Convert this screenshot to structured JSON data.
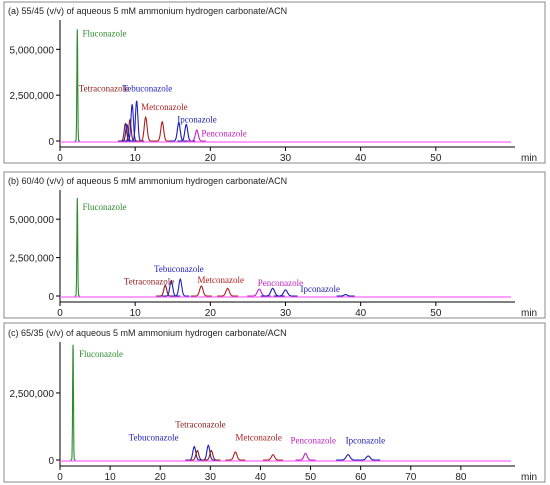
{
  "colors": {
    "fluconazole": "#2e8b2e",
    "tetraconazole": "#8b1a1a",
    "tebuconazole": "#2020c0",
    "metconazole": "#b02020",
    "ipconazole": "#1a1ab0",
    "penconazole": "#c020c0",
    "baseline": "#ff66ff"
  },
  "chart_data": [
    {
      "type": "line",
      "title": "(a)  55/45 (v/v)  of aqueous 5 mM ammonium hydrogen carbonate/ACN",
      "xlabel": "min",
      "xlim": [
        0,
        60
      ],
      "ylim": [
        -400000,
        6600000
      ],
      "x_ticks": [
        0,
        10,
        20,
        30,
        40,
        50
      ],
      "y_ticks": [
        0,
        2500000,
        5000000
      ],
      "y_tick_labels": [
        "0",
        "2500000",
        "5000000"
      ],
      "grid": false,
      "peaks": [
        {
          "compound": "fluconazole",
          "t": 2.3,
          "h": 6100000,
          "w": 0.09
        },
        {
          "compound": "tetraconazole",
          "t": 8.7,
          "h": 950000,
          "w": 0.25
        },
        {
          "compound": "tetraconazole",
          "t": 9.3,
          "h": 1150000,
          "w": 0.25
        },
        {
          "compound": "tebuconazole",
          "t": 8.9,
          "h": 900000,
          "w": 0.25
        },
        {
          "compound": "tebuconazole",
          "t": 9.6,
          "h": 2000000,
          "w": 0.25
        },
        {
          "compound": "tebuconazole",
          "t": 10.2,
          "h": 2200000,
          "w": 0.25
        },
        {
          "compound": "metconazole",
          "t": 11.4,
          "h": 1300000,
          "w": 0.3
        },
        {
          "compound": "metconazole",
          "t": 13.6,
          "h": 1050000,
          "w": 0.3
        },
        {
          "compound": "ipconazole",
          "t": 15.8,
          "h": 1000000,
          "w": 0.3
        },
        {
          "compound": "ipconazole",
          "t": 16.8,
          "h": 900000,
          "w": 0.3
        },
        {
          "compound": "penconazole",
          "t": 18.2,
          "h": 600000,
          "w": 0.3
        }
      ],
      "labels": [
        {
          "text": "Fluconazole",
          "color": "fluconazole",
          "t": 3.0,
          "y": 5700000
        },
        {
          "text": "Tetraconazole",
          "color": "tetraconazole",
          "t": 2.5,
          "y": 2700000
        },
        {
          "text": "Tebuconazole",
          "color": "tebuconazole",
          "t": 8.3,
          "y": 2700000
        },
        {
          "text": "Metconazole",
          "color": "metconazole",
          "t": 10.8,
          "y": 1700000
        },
        {
          "text": "Ipconazole",
          "color": "ipconazole",
          "t": 15.6,
          "y": 1000000
        },
        {
          "text": "Penconazole",
          "color": "penconazole",
          "t": 18.8,
          "y": 250000
        }
      ]
    },
    {
      "type": "line",
      "title": "(b) 60/40 (v/v) of aqueous 5 mM ammonium hydrogen carbonate/ACN",
      "xlabel": "min",
      "xlim": [
        0,
        60
      ],
      "ylim": [
        -400000,
        6900000
      ],
      "x_ticks": [
        0,
        10,
        20,
        30,
        40,
        50
      ],
      "y_ticks": [
        0,
        2500000,
        5000000
      ],
      "y_tick_labels": [
        "0",
        "2500000",
        "5000000"
      ],
      "grid": false,
      "peaks": [
        {
          "compound": "fluconazole",
          "t": 2.3,
          "h": 6400000,
          "w": 0.09
        },
        {
          "compound": "tetraconazole",
          "t": 14.0,
          "h": 700000,
          "w": 0.3
        },
        {
          "compound": "tebuconazole",
          "t": 14.8,
          "h": 1000000,
          "w": 0.3
        },
        {
          "compound": "tebuconazole",
          "t": 16.0,
          "h": 1100000,
          "w": 0.3
        },
        {
          "compound": "metconazole",
          "t": 18.8,
          "h": 650000,
          "w": 0.35
        },
        {
          "compound": "metconazole",
          "t": 22.3,
          "h": 500000,
          "w": 0.35
        },
        {
          "compound": "penconazole",
          "t": 26.5,
          "h": 450000,
          "w": 0.4
        },
        {
          "compound": "ipconazole",
          "t": 28.3,
          "h": 500000,
          "w": 0.4
        },
        {
          "compound": "ipconazole",
          "t": 30.0,
          "h": 400000,
          "w": 0.4
        },
        {
          "compound": "ipconazole",
          "t": 38.0,
          "h": 100000,
          "w": 0.3
        }
      ],
      "labels": [
        {
          "text": "Fluconazole",
          "color": "fluconazole",
          "t": 3.0,
          "y": 5600000
        },
        {
          "text": "Tebuconazole",
          "color": "tebuconazole",
          "t": 12.5,
          "y": 1550000
        },
        {
          "text": "Tetraconazole",
          "color": "tetraconazole",
          "t": 8.5,
          "y": 750000
        },
        {
          "text": "Metconazole",
          "color": "metconazole",
          "t": 18.3,
          "y": 850000
        },
        {
          "text": "Penconazole",
          "color": "penconazole",
          "t": 26.3,
          "y": 650000
        },
        {
          "text": "Ipconazole",
          "color": "ipconazole",
          "t": 32.0,
          "y": 250000
        }
      ]
    },
    {
      "type": "line",
      "title": "(c) 65/35 (v/v) of aqueous 5 mM ammonium hydrogen carbonate/ACN",
      "xlabel": "min",
      "xlim": [
        0,
        90
      ],
      "ylim": [
        -300000,
        4400000
      ],
      "x_ticks": [
        0,
        10,
        20,
        30,
        40,
        50,
        60,
        70,
        80
      ],
      "y_ticks": [
        0,
        2500000
      ],
      "y_tick_labels": [
        "0",
        "2500000"
      ],
      "grid": false,
      "peaks": [
        {
          "compound": "fluconazole",
          "t": 2.6,
          "h": 4300000,
          "w": 0.13
        },
        {
          "compound": "tebuconazole",
          "t": 26.8,
          "h": 500000,
          "w": 0.45
        },
        {
          "compound": "tetraconazole",
          "t": 27.4,
          "h": 350000,
          "w": 0.45
        },
        {
          "compound": "tebuconazole",
          "t": 29.6,
          "h": 550000,
          "w": 0.45
        },
        {
          "compound": "tetraconazole",
          "t": 30.2,
          "h": 350000,
          "w": 0.45
        },
        {
          "compound": "metconazole",
          "t": 35.0,
          "h": 300000,
          "w": 0.5
        },
        {
          "compound": "metconazole",
          "t": 42.5,
          "h": 200000,
          "w": 0.5
        },
        {
          "compound": "penconazole",
          "t": 49.0,
          "h": 250000,
          "w": 0.5
        },
        {
          "compound": "ipconazole",
          "t": 57.5,
          "h": 200000,
          "w": 0.6
        },
        {
          "compound": "ipconazole",
          "t": 61.5,
          "h": 150000,
          "w": 0.6
        }
      ],
      "labels": [
        {
          "text": "Fluconazole",
          "color": "fluconazole",
          "t": 3.8,
          "y": 3850000
        },
        {
          "text": "Tetraconazole",
          "color": "tetraconazole",
          "t": 23.0,
          "y": 1220000
        },
        {
          "text": "Tebuconazole",
          "color": "tebuconazole",
          "t": 13.7,
          "y": 720000
        },
        {
          "text": "Metconazole",
          "color": "metconazole",
          "t": 35.0,
          "y": 720000
        },
        {
          "text": "Penconazole",
          "color": "penconazole",
          "t": 46.0,
          "y": 620000
        },
        {
          "text": "Ipconazole",
          "color": "ipconazole",
          "t": 57.0,
          "y": 620000
        }
      ]
    }
  ]
}
